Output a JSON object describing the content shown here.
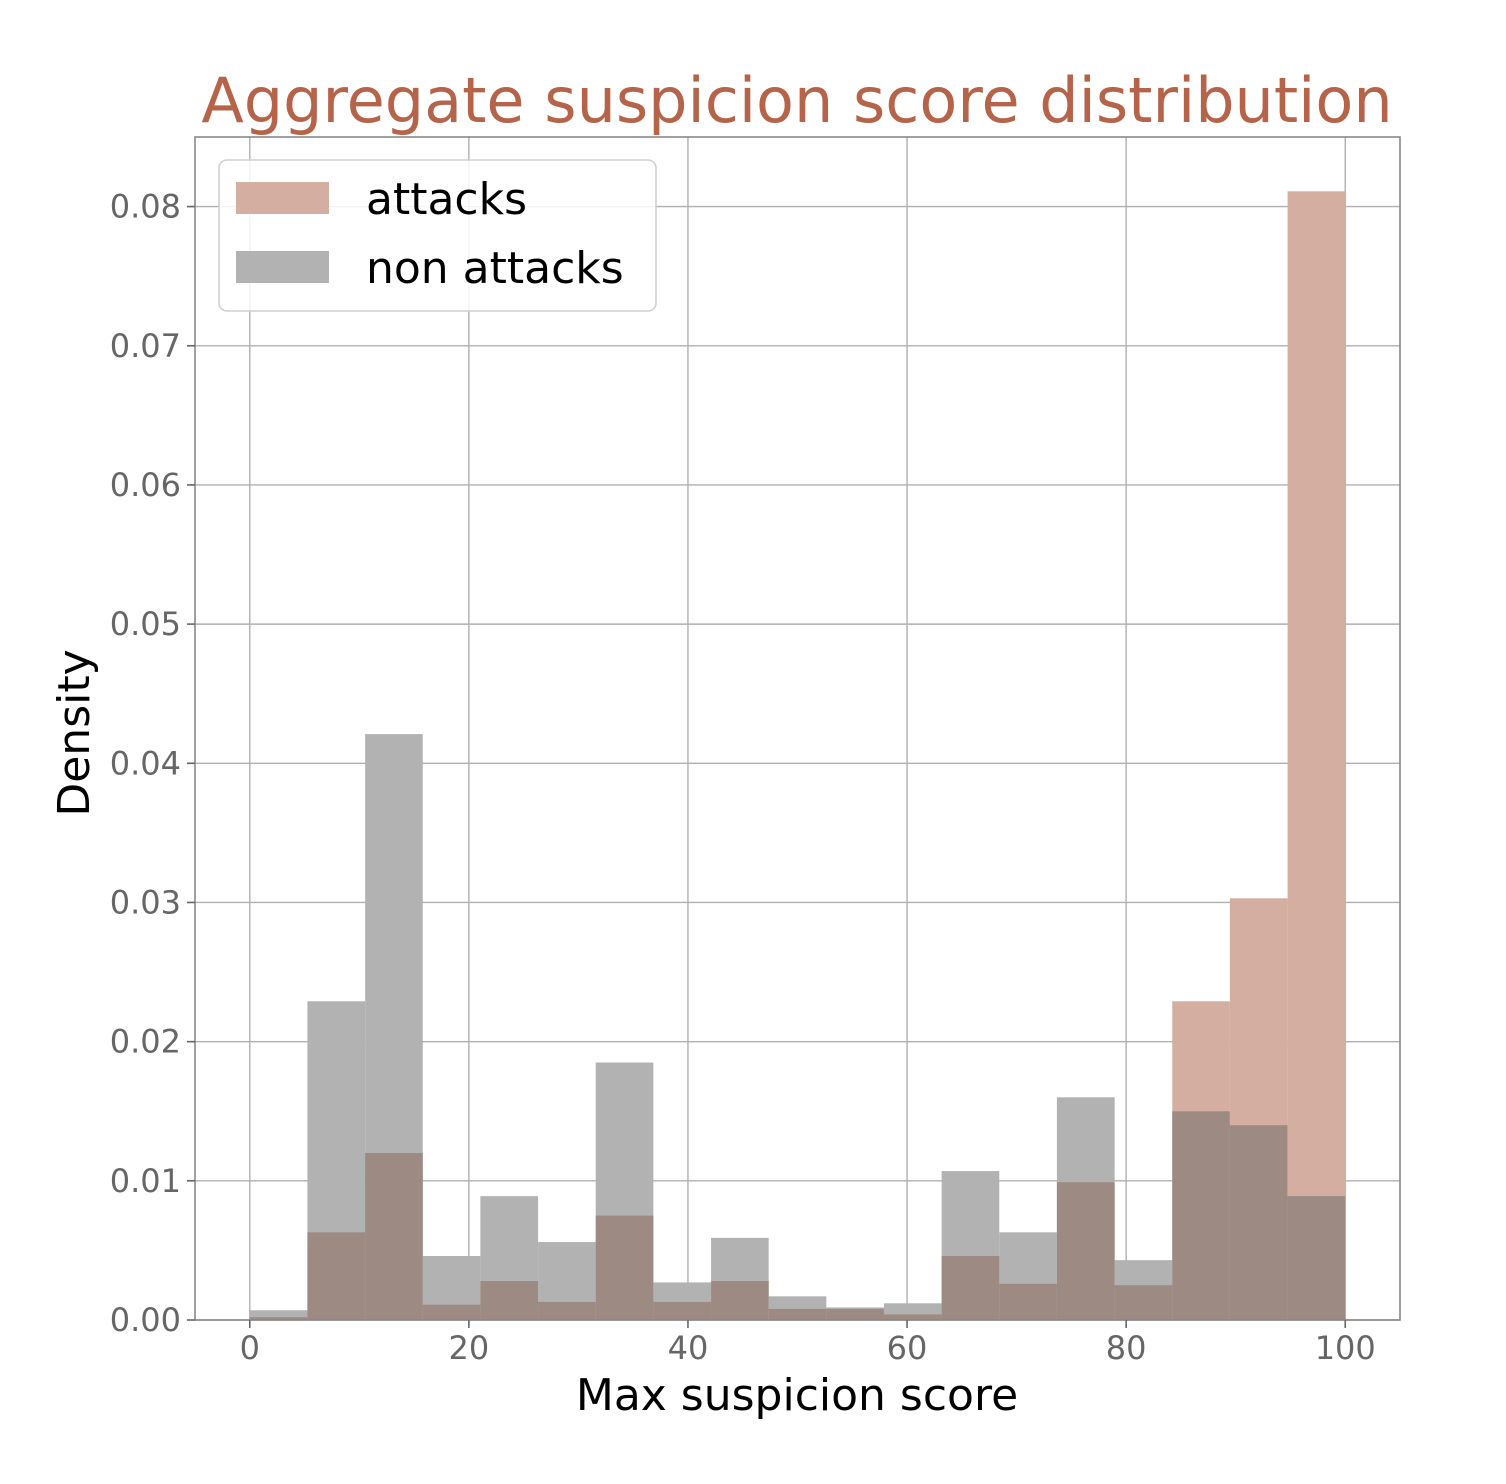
{
  "chart_data": {
    "type": "bar",
    "title": "Aggregate suspicion score distribution",
    "xlabel": "Max suspicion score",
    "ylabel": "Density",
    "xlim": [
      -5,
      105
    ],
    "ylim": [
      0,
      0.085
    ],
    "xticks": [
      "0",
      "20",
      "40",
      "60",
      "80",
      "100"
    ],
    "xtick_values": [
      0,
      20,
      40,
      60,
      80,
      100
    ],
    "yticks": [
      "0.00",
      "0.01",
      "0.02",
      "0.03",
      "0.04",
      "0.05",
      "0.06",
      "0.07",
      "0.08"
    ],
    "ytick_values": [
      0,
      0.01,
      0.02,
      0.03,
      0.04,
      0.05,
      0.06,
      0.07,
      0.08
    ],
    "grid": true,
    "legend_position": "top-left",
    "bin_edges": [
      0,
      5.26,
      10.53,
      15.79,
      21.05,
      26.32,
      31.58,
      36.84,
      42.11,
      47.37,
      52.63,
      57.89,
      63.16,
      68.42,
      73.68,
      78.95,
      84.21,
      89.47,
      94.74,
      100
    ],
    "series": [
      {
        "name": "attacks",
        "color": "#b5644a",
        "values": [
          0.0002,
          0.0063,
          0.012,
          0.0011,
          0.0028,
          0.0013,
          0.0075,
          0.0013,
          0.0028,
          0.0008,
          0.0008,
          0.0004,
          0.0046,
          0.0026,
          0.0099,
          0.0025,
          0.0229,
          0.0303,
          0.0811
        ]
      },
      {
        "name": "non attacks",
        "color": "#666666",
        "values": [
          0.0007,
          0.0229,
          0.0421,
          0.0046,
          0.0089,
          0.0056,
          0.0185,
          0.0027,
          0.0059,
          0.0017,
          0.0009,
          0.0012,
          0.0107,
          0.0063,
          0.016,
          0.0043,
          0.015,
          0.014,
          0.0089
        ]
      }
    ]
  },
  "colors": {
    "title": "#b5644a",
    "attacks_fill": "#d4aea1",
    "non_attacks_fill": "#b2b2b2",
    "overlap_fill": "#9d8a83"
  }
}
